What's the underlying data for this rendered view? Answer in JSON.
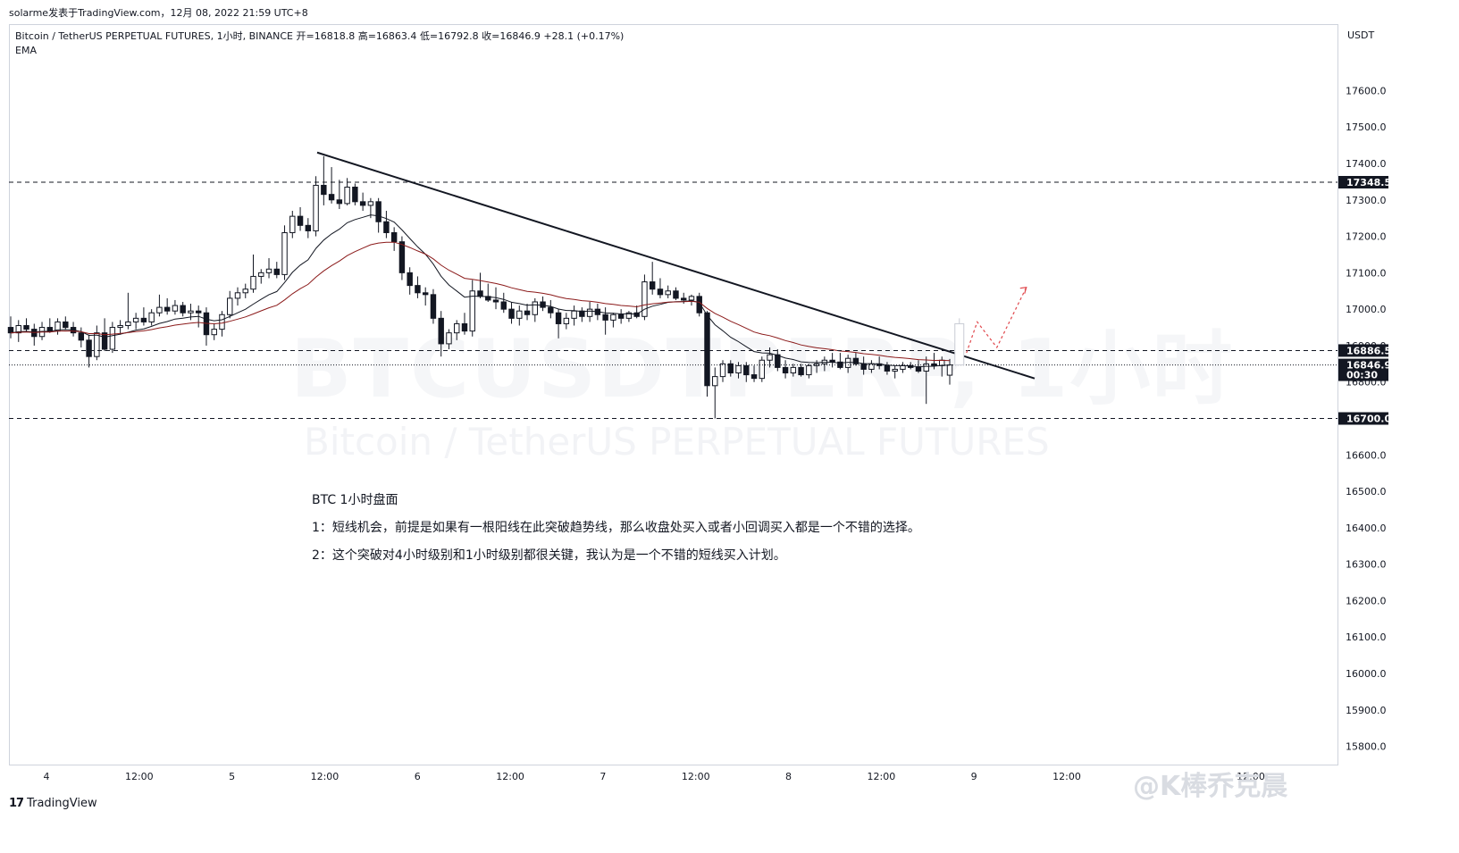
{
  "top_line": "solarme发表于TradingView.com，12月 08, 2022 21:59 UTC+8",
  "header": {
    "symbol": "Bitcoin / TetherUS PERPETUAL FUTURES, 1小时, BINANCE",
    "open_label": "开=16818.8",
    "high_label": "高=16863.4",
    "low_label": "低=16792.8",
    "close_label": "收=16846.9",
    "change_label": "+28.1 (+0.17%)",
    "indicator": "EMA"
  },
  "currency": "USDT",
  "watermark": {
    "big": "BTCUSDTPERP, 1小时",
    "small": "Bitcoin / TetherUS PERPETUAL FUTURES"
  },
  "notes": [
    "BTC 1小时盘面",
    "1：短线机会，前提是如果有一根阳线在此突破趋势线，那么收盘处买入或者小回调买入都是一个不错的选择。",
    "2：这个突破对4小时级别和1小时级别都很关键，我认为是一个不错的短线买入计划。"
  ],
  "brand": "TradingView",
  "weibo": "@K棒乔克晨",
  "colors": {
    "up": "#ffffff",
    "down": "#131722",
    "ema_fast": "#131722",
    "ema_slow": "#8b1a1a",
    "projection": "#e0474c",
    "label_bg": "#131722"
  },
  "chart_data": {
    "type": "candlestick",
    "ylim": [
      15750,
      17780
    ],
    "yticks": [
      "17600.0",
      "17500.0",
      "17400.0",
      "17300.0",
      "17200.0",
      "17100.0",
      "17000.0",
      "16900.0",
      "16800.0",
      "16700.0",
      "16600.0",
      "16500.0",
      "16400.0",
      "16300.0",
      "16200.0",
      "16100.0",
      "16000.0",
      "15900.0",
      "15800.0"
    ],
    "xticks": [
      "4",
      "12:00",
      "5",
      "12:00",
      "6",
      "12:00",
      "7",
      "12:00",
      "8",
      "12:00",
      "9",
      "12:00",
      "12:00"
    ],
    "price_labels": [
      {
        "text": "17348.5",
        "value": 17348.5,
        "style": "dashed"
      },
      {
        "text": "16886.5",
        "value": 16886.5,
        "style": "dashed"
      },
      {
        "text": "16846.9",
        "value": 16846.9,
        "style": "dotted"
      },
      {
        "text": "00:30",
        "value": 16820,
        "style": "sub"
      },
      {
        "text": "16700.0",
        "value": 16700.0,
        "style": "dashed"
      }
    ],
    "trendline": {
      "from": [
        0,
        17430
      ],
      "to": [
        1,
        16810
      ]
    },
    "candles": [
      [
        16950,
        16980,
        16920,
        16935
      ],
      [
        16935,
        16970,
        16910,
        16955
      ],
      [
        16955,
        16975,
        16940,
        16945
      ],
      [
        16945,
        16960,
        16900,
        16925
      ],
      [
        16925,
        16965,
        16915,
        16950
      ],
      [
        16950,
        16975,
        16935,
        16940
      ],
      [
        16940,
        16975,
        16930,
        16965
      ],
      [
        16965,
        16980,
        16945,
        16950
      ],
      [
        16950,
        16965,
        16925,
        16935
      ],
      [
        16935,
        16950,
        16895,
        16915
      ],
      [
        16915,
        16930,
        16840,
        16870
      ],
      [
        16870,
        16955,
        16860,
        16935
      ],
      [
        16935,
        16975,
        16885,
        16890
      ],
      [
        16890,
        16965,
        16880,
        16950
      ],
      [
        16950,
        16970,
        16930,
        16955
      ],
      [
        16955,
        17045,
        16945,
        16965
      ],
      [
        16965,
        16990,
        16945,
        16975
      ],
      [
        16975,
        17005,
        16955,
        16965
      ],
      [
        16965,
        17000,
        16955,
        16990
      ],
      [
        16990,
        17040,
        16980,
        17005
      ],
      [
        17005,
        17030,
        16985,
        16995
      ],
      [
        16995,
        17025,
        16985,
        17010
      ],
      [
        17010,
        17020,
        16980,
        16990
      ],
      [
        16990,
        17015,
        16970,
        16995
      ],
      [
        16995,
        17010,
        16950,
        16990
      ],
      [
        16990,
        17005,
        16900,
        16930
      ],
      [
        16930,
        16960,
        16915,
        16945
      ],
      [
        16945,
        16995,
        16925,
        16985
      ],
      [
        16985,
        17050,
        16975,
        17030
      ],
      [
        17030,
        17060,
        17010,
        17045
      ],
      [
        17045,
        17070,
        17030,
        17055
      ],
      [
        17055,
        17150,
        17045,
        17090
      ],
      [
        17090,
        17110,
        17070,
        17100
      ],
      [
        17100,
        17140,
        17085,
        17110
      ],
      [
        17110,
        17130,
        17085,
        17095
      ],
      [
        17095,
        17230,
        17080,
        17210
      ],
      [
        17210,
        17270,
        17195,
        17255
      ],
      [
        17255,
        17280,
        17215,
        17230
      ],
      [
        17230,
        17250,
        17195,
        17215
      ],
      [
        17215,
        17365,
        17200,
        17340
      ],
      [
        17340,
        17420,
        17285,
        17315
      ],
      [
        17315,
        17390,
        17290,
        17300
      ],
      [
        17300,
        17355,
        17275,
        17290
      ],
      [
        17290,
        17360,
        17285,
        17335
      ],
      [
        17335,
        17345,
        17285,
        17295
      ],
      [
        17295,
        17320,
        17270,
        17285
      ],
      [
        17285,
        17305,
        17250,
        17295
      ],
      [
        17295,
        17305,
        17210,
        17240
      ],
      [
        17240,
        17270,
        17195,
        17210
      ],
      [
        17210,
        17225,
        17160,
        17185
      ],
      [
        17185,
        17200,
        17080,
        17100
      ],
      [
        17100,
        17115,
        17040,
        17065
      ],
      [
        17065,
        17090,
        17030,
        17045
      ],
      [
        17045,
        17060,
        17010,
        17040
      ],
      [
        17040,
        17055,
        16960,
        16975
      ],
      [
        16975,
        16995,
        16870,
        16905
      ],
      [
        16905,
        16945,
        16890,
        16935
      ],
      [
        16935,
        16970,
        16915,
        16960
      ],
      [
        16960,
        16990,
        16930,
        16940
      ],
      [
        16940,
        17080,
        16925,
        17050
      ],
      [
        17050,
        17100,
        17030,
        17035
      ],
      [
        17035,
        17070,
        17020,
        17025
      ],
      [
        17025,
        17060,
        17000,
        17020
      ],
      [
        17020,
        17045,
        16990,
        17000
      ],
      [
        17000,
        17020,
        16960,
        16975
      ],
      [
        16975,
        17010,
        16955,
        16995
      ],
      [
        16995,
        17015,
        16970,
        16985
      ],
      [
        16985,
        17030,
        16965,
        17020
      ],
      [
        17020,
        17035,
        16995,
        17005
      ],
      [
        17005,
        17025,
        16975,
        16990
      ],
      [
        16990,
        17000,
        16920,
        16960
      ],
      [
        16960,
        16990,
        16945,
        16975
      ],
      [
        16975,
        17010,
        16955,
        16995
      ],
      [
        16995,
        17005,
        16965,
        16980
      ],
      [
        16980,
        17020,
        16965,
        17000
      ],
      [
        17000,
        17015,
        16970,
        16985
      ],
      [
        16985,
        17005,
        16930,
        16970
      ],
      [
        16970,
        16990,
        16950,
        16985
      ],
      [
        16985,
        17000,
        16960,
        16975
      ],
      [
        16975,
        16995,
        16965,
        16990
      ],
      [
        16990,
        17010,
        16975,
        16980
      ],
      [
        16980,
        17095,
        16970,
        17075
      ],
      [
        17075,
        17130,
        17040,
        17055
      ],
      [
        17055,
        17085,
        17030,
        17040
      ],
      [
        17040,
        17065,
        17030,
        17050
      ],
      [
        17050,
        17060,
        17025,
        17030
      ],
      [
        17030,
        17045,
        17015,
        17025
      ],
      [
        17025,
        17040,
        17010,
        17035
      ],
      [
        17035,
        17045,
        16980,
        16990
      ],
      [
        16990,
        16995,
        16760,
        16790
      ],
      [
        16790,
        16840,
        16700,
        16815
      ],
      [
        16815,
        16860,
        16800,
        16850
      ],
      [
        16850,
        16860,
        16815,
        16825
      ],
      [
        16825,
        16855,
        16810,
        16845
      ],
      [
        16845,
        16855,
        16800,
        16820
      ],
      [
        16820,
        16845,
        16800,
        16810
      ],
      [
        16810,
        16870,
        16800,
        16860
      ],
      [
        16860,
        16895,
        16840,
        16875
      ],
      [
        16875,
        16890,
        16830,
        16840
      ],
      [
        16840,
        16860,
        16810,
        16825
      ],
      [
        16825,
        16850,
        16815,
        16840
      ],
      [
        16840,
        16850,
        16815,
        16820
      ],
      [
        16820,
        16850,
        16810,
        16845
      ],
      [
        16845,
        16860,
        16825,
        16850
      ],
      [
        16850,
        16870,
        16830,
        16860
      ],
      [
        16860,
        16880,
        16840,
        16855
      ],
      [
        16855,
        16880,
        16835,
        16840
      ],
      [
        16840,
        16875,
        16825,
        16865
      ],
      [
        16865,
        16880,
        16845,
        16850
      ],
      [
        16850,
        16870,
        16820,
        16835
      ],
      [
        16835,
        16860,
        16825,
        16850
      ],
      [
        16850,
        16870,
        16835,
        16845
      ],
      [
        16845,
        16855,
        16820,
        16830
      ],
      [
        16830,
        16845,
        16810,
        16835
      ],
      [
        16835,
        16855,
        16825,
        16845
      ],
      [
        16845,
        16855,
        16835,
        16840
      ],
      [
        16840,
        16860,
        16825,
        16830
      ],
      [
        16830,
        16870,
        16740,
        16850
      ],
      [
        16850,
        16880,
        16835,
        16845
      ],
      [
        16845,
        16870,
        16815,
        16860
      ],
      [
        16818.8,
        16863.4,
        16792.8,
        16846.9
      ]
    ],
    "projection_candle": [
      16846.9,
      16975,
      16846.9,
      16960
    ],
    "projection_path": [
      16880,
      16965,
      16895,
      17060
    ]
  }
}
